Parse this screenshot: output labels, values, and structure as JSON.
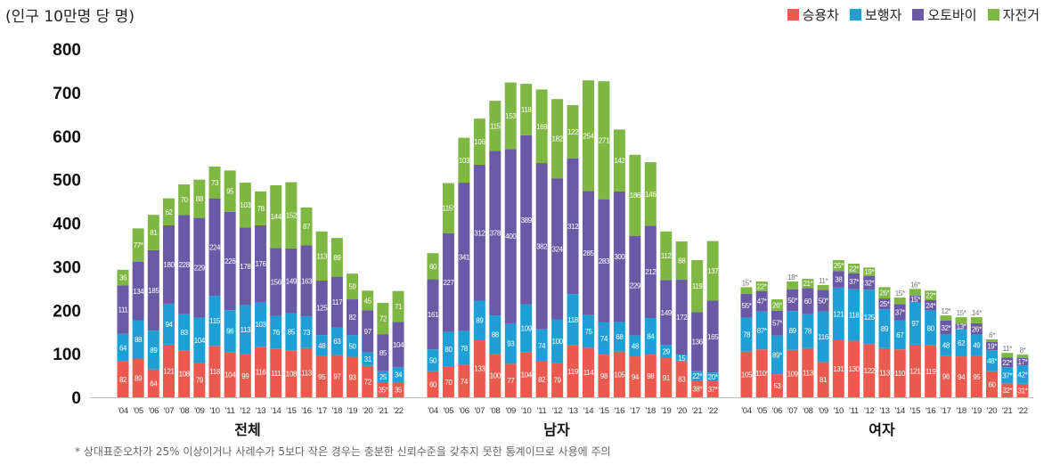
{
  "chart_data": {
    "type": "bar",
    "stacked": true,
    "ylabel": "(인구 10만명 당 명)",
    "ylim": [
      0,
      800
    ],
    "yticks": [
      0,
      100,
      200,
      300,
      400,
      500,
      600,
      700,
      800
    ],
    "grid": false,
    "legend_position": "top-right",
    "unreliable_marker": "*",
    "footnote": "* 상대표준오차가 25% 이상이거나 사례수가 5보다 작은 경우는 충분한 신뢰수준을 갖추지 못한 통계이므로 사용에 주의",
    "categories": [
      "'04",
      "'05",
      "'06",
      "'07",
      "'08",
      "'09",
      "'10",
      "'11",
      "'12",
      "'13",
      "'14",
      "'15",
      "'16",
      "'17",
      "'18",
      "'19",
      "'20",
      "'21",
      "'22"
    ],
    "series": [
      {
        "name": "승용차",
        "color": "#ea5a4e"
      },
      {
        "name": "보행자",
        "color": "#1e9fd6"
      },
      {
        "name": "오토바이",
        "color": "#6a5aa6"
      },
      {
        "name": "자전거",
        "color": "#7fb743"
      }
    ],
    "groups": [
      {
        "name": "전체",
        "series": [
          {
            "values": [
              82,
              89,
              64,
              121,
              108,
              79,
              118,
              104,
              99,
              116,
              111,
              108,
              113,
              95,
              97,
              93,
              72,
              35,
              35
            ],
            "unreliable": [
              17
            ]
          },
          {
            "values": [
              64,
              88,
              89,
              94,
              83,
              104,
              115,
              96,
              113,
              103,
              76,
              85,
              73,
              48,
              63,
              50,
              31,
              25,
              34
            ],
            "unreliable": []
          },
          {
            "values": [
              111,
              134,
              185,
              180,
              228,
              229,
              224,
              226,
              178,
              176,
              156,
              149,
              163,
              125,
              117,
              82,
              97,
              85,
              104
            ],
            "unreliable": []
          },
          {
            "values": [
              36,
              77,
              81,
              62,
              70,
              88,
              73,
              95,
              103,
              78,
              144,
              152,
              87,
              113,
              89,
              59,
              45,
              72,
              71
            ],
            "unreliable": [
              1
            ]
          }
        ]
      },
      {
        "name": "남자",
        "series": [
          {
            "values": [
              60,
              70,
              74,
              133,
              100,
              77,
              104,
              82,
              79,
              119,
              114,
              98,
              105,
              94,
              98,
              91,
              83,
              38,
              37
            ],
            "unreliable": [
              17,
              18
            ]
          },
          {
            "values": [
              50,
              80,
              78,
              89,
              88,
              93,
              109,
              74,
              100,
              118,
              75,
              74,
              68,
              48,
              84,
              29,
              15,
              22,
              20
            ],
            "unreliable": [
              17,
              18
            ]
          },
          {
            "values": [
              161,
              227,
              341,
              312,
              378,
              400,
              389,
              382,
              324,
              312,
              285,
              283,
              300,
              229,
              212,
              149,
              172,
              136,
              165
            ],
            "unreliable": []
          },
          {
            "values": [
              60,
              115,
              103,
              106,
              115,
              153,
              118,
              169,
              182,
              122,
              254,
              271,
              142,
              186,
              146,
              112,
              88,
              119,
              137
            ],
            "unreliable": [
              1
            ]
          }
        ]
      },
      {
        "name": "여자",
        "series": [
          {
            "values": [
              105,
              110,
              53,
              109,
              113,
              81,
              131,
              130,
              122,
              113,
              110,
              121,
              119,
              96,
              94,
              95,
              60,
              32,
              31
            ],
            "unreliable": [
              1,
              17,
              18
            ]
          },
          {
            "values": [
              78,
              87,
              89,
              89,
              78,
              116,
              121,
              118,
              125,
              89,
              67,
              97,
              80,
              48,
              62,
              49,
              48,
              37,
              42
            ],
            "unreliable": [
              1,
              2,
              16,
              17,
              18
            ]
          },
          {
            "values": [
              55,
              47,
              57,
              50,
              60,
              50,
              38,
              37,
              32,
              25,
              37,
              15,
              24,
              32,
              13,
              26,
              19,
              22,
              17
            ],
            "unreliable": [
              0,
              1,
              2,
              3,
              5,
              7,
              8,
              9,
              10,
              11,
              12,
              13,
              14,
              15,
              16,
              17,
              18
            ]
          },
          {
            "values": [
              15,
              22,
              26,
              18,
              21,
              11,
              25,
              22,
              19,
              26,
              15,
              16,
              22,
              12,
              15,
              14,
              6,
              11,
              8
            ],
            "unreliable": [
              0,
              1,
              2,
              3,
              4,
              5,
              6,
              7,
              8,
              9,
              10,
              11,
              12,
              13,
              14,
              15,
              16,
              17,
              18
            ]
          }
        ]
      }
    ]
  }
}
